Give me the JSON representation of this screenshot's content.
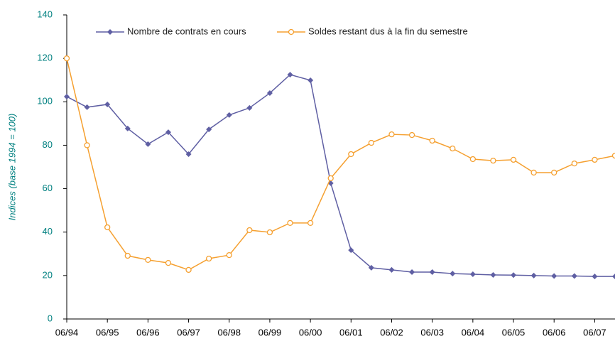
{
  "chart_data": {
    "type": "line",
    "y_label": "Indices (base 1994 = 100)",
    "categories": [
      "06/94",
      null,
      "06/95",
      null,
      "06/96",
      null,
      "06/97",
      null,
      "06/98",
      null,
      "06/99",
      null,
      "06/00",
      null,
      "06/01",
      null,
      "06/02",
      null,
      "06/03",
      null,
      "06/04",
      null,
      "06/05",
      null,
      "06/06",
      null,
      "06/07",
      null
    ],
    "series": [
      {
        "name": "Nombre de contrats en cours",
        "color": "#5f5fa3",
        "marker": "diamond",
        "values": [
          102.4,
          97.5,
          98.8,
          87.7,
          80.5,
          86,
          75.9,
          87.3,
          93.9,
          97.2,
          104,
          112.5,
          109.9,
          62.5,
          31.7,
          23.6,
          22.6,
          21.6,
          21.6,
          20.9,
          20.6,
          20.3,
          20.2,
          20,
          19.8,
          19.8,
          19.6,
          19.6
        ]
      },
      {
        "name": "Soldes restant dus à la fin du semestre",
        "color": "#f5a030",
        "marker": "circle",
        "values": [
          120,
          80,
          42.2,
          29.1,
          27.2,
          25.8,
          22.6,
          27.8,
          29.4,
          40.9,
          39.9,
          44.2,
          44.2,
          64.8,
          75.9,
          81.1,
          85,
          84.7,
          82.1,
          78.5,
          73.6,
          72.9,
          73.3,
          67.4,
          67.4,
          71.6,
          73.3,
          75.2
        ]
      }
    ],
    "ylim": [
      0,
      140
    ],
    "yticks": [
      0,
      20,
      40,
      60,
      80,
      100,
      120,
      140
    ],
    "axis_color": "#008080",
    "grid": false,
    "legend": "top"
  }
}
